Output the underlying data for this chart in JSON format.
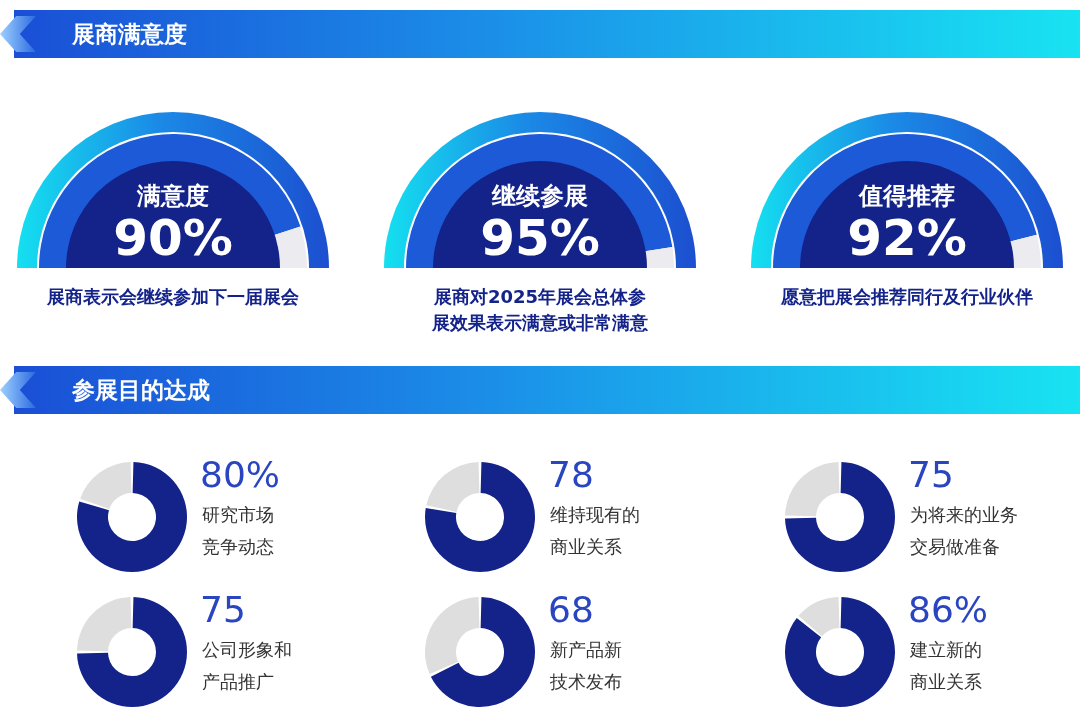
{
  "chart_data": [
    {
      "type": "other",
      "title": "展商满意度"
    },
    {
      "type": "donut",
      "title": "满意度",
      "categories": [
        null,
        null
      ],
      "values": [
        90,
        10
      ],
      "colors": [
        "#1c5ad8",
        "#ececf0"
      ],
      "value_labels": [
        "90%",
        null
      ],
      "annotations": [
        "展商表示会继续参加下一届展会"
      ]
    },
    {
      "type": "donut",
      "title": "继续参展",
      "categories": [
        null,
        null
      ],
      "values": [
        95,
        5
      ],
      "colors": [
        "#1c5ad8",
        "#ececf0"
      ],
      "value_labels": [
        "95%",
        null
      ],
      "annotations": [
        "展商对2025年展会总体参展效果表示满意或非常满意"
      ]
    },
    {
      "type": "donut",
      "title": "值得推荐",
      "categories": [
        null,
        null
      ],
      "values": [
        92,
        8
      ],
      "colors": [
        "#1c5ad8",
        "#ececf0"
      ],
      "value_labels": [
        "92%",
        null
      ],
      "annotations": [
        "愿意把展会推荐同行及行业伙伴"
      ]
    },
    {
      "type": "other",
      "title": "参展目的达成"
    },
    {
      "type": "donut",
      "categories": [
        null,
        null
      ],
      "values": [
        80,
        20
      ],
      "colors": [
        "#13238a",
        "#dedede"
      ],
      "value_labels": [
        "80%",
        null
      ],
      "annotations": [
        "研究市场竞争动态"
      ]
    },
    {
      "type": "donut",
      "categories": [
        null,
        null
      ],
      "values": [
        78,
        22
      ],
      "colors": [
        "#13238a",
        "#dedede"
      ],
      "value_labels": [
        "78",
        null
      ],
      "annotations": [
        "维持现有的商业关系"
      ]
    },
    {
      "type": "donut",
      "categories": [
        null,
        null
      ],
      "values": [
        75,
        25
      ],
      "colors": [
        "#13238a",
        "#dedede"
      ],
      "value_labels": [
        "75",
        null
      ],
      "annotations": [
        "为将来的业务交易做准备"
      ]
    },
    {
      "type": "donut",
      "categories": [
        null,
        null
      ],
      "values": [
        75,
        25
      ],
      "colors": [
        "#13238a",
        "#dedede"
      ],
      "value_labels": [
        "75",
        null
      ],
      "annotations": [
        "公司形象和产品推广"
      ]
    },
    {
      "type": "donut",
      "categories": [
        null,
        null
      ],
      "values": [
        68,
        32
      ],
      "colors": [
        "#13238a",
        "#dedede"
      ],
      "value_labels": [
        "68",
        null
      ],
      "annotations": [
        "新产品新技术发布"
      ]
    },
    {
      "type": "donut",
      "categories": [
        null,
        null
      ],
      "values": [
        86,
        14
      ],
      "colors": [
        "#13238a",
        "#dedede"
      ],
      "value_labels": [
        "86%",
        null
      ],
      "annotations": [
        "建立新的商业关系"
      ]
    }
  ]
}
